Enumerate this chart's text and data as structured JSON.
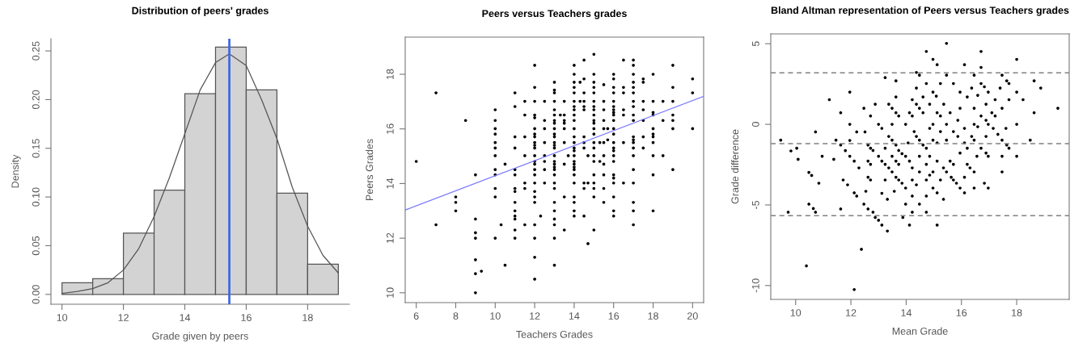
{
  "chart_data": [
    {
      "type": "histogram",
      "title": "Distribution of peers' grades",
      "xlabel": "Grade given by peers",
      "ylabel": "Density",
      "bins": [
        10,
        11,
        12,
        13,
        14,
        15,
        16,
        17,
        18,
        19
      ],
      "values": [
        0.012,
        0.016,
        0.063,
        0.107,
        0.206,
        0.254,
        0.21,
        0.104,
        0.031
      ],
      "color": "#d3d3d3",
      "series": [
        {
          "type": "line",
          "color": "#555555",
          "x": [
            10,
            10.5,
            11,
            11.5,
            12,
            12.5,
            13,
            13.5,
            14,
            14.5,
            15,
            15.45,
            16,
            16.5,
            17,
            17.5,
            18,
            18.5,
            19
          ],
          "values": [
            0.001,
            0.003,
            0.006,
            0.012,
            0.025,
            0.047,
            0.08,
            0.12,
            0.165,
            0.21,
            0.238,
            0.247,
            0.235,
            0.2,
            0.16,
            0.11,
            0.07,
            0.04,
            0.022
          ]
        }
      ],
      "ref_lines": [
        {
          "axis": "x",
          "value": 15.45,
          "color": "#4169e1"
        }
      ],
      "xlim": [
        9.64,
        19.36
      ],
      "ylim": [
        -0.0101,
        0.2625
      ],
      "xticks": [
        10,
        12,
        14,
        16,
        18
      ],
      "yticks": [
        {
          "value": 0,
          "label": "0.00"
        },
        {
          "value": 0.05,
          "label": "0.05"
        },
        {
          "value": 0.1,
          "label": "0.10"
        },
        {
          "value": 0.15,
          "label": "0.15"
        },
        {
          "value": 0.2,
          "label": "0.20"
        },
        {
          "value": 0.25,
          "label": "0.25"
        }
      ]
    },
    {
      "type": "scatter",
      "title": "Peers versus Teachers grades",
      "xlabel": "Teachers Grades",
      "ylabel": "Peers Grades",
      "marker": "circle",
      "series": [
        {
          "color": "#000000",
          "x": [
            6,
            7,
            7,
            8,
            8,
            8,
            8.5,
            9,
            9,
            9,
            9,
            9,
            9,
            9,
            9.3,
            10,
            10,
            10,
            10,
            10,
            10,
            10,
            10,
            10,
            10,
            10,
            10,
            10.3,
            10.5,
            10.5,
            11,
            11,
            11,
            11,
            11,
            11,
            11,
            11,
            11,
            11,
            11,
            11,
            11,
            11,
            11.5,
            11.5,
            11.5,
            11.5,
            11.5,
            11.5,
            11.5,
            12,
            12,
            12,
            12,
            12,
            12,
            12,
            12,
            12,
            12,
            12,
            12,
            12,
            12,
            12,
            12,
            12,
            12,
            12,
            12,
            12,
            12,
            12,
            12,
            12.3,
            12.5,
            12.5,
            12.5,
            12.5,
            12.5,
            12.5,
            12.5,
            12.5,
            13,
            13,
            13,
            13,
            13,
            13,
            13,
            13,
            13,
            13,
            13,
            13,
            13,
            13,
            13,
            13,
            13,
            13,
            13,
            13,
            13,
            13,
            13,
            13,
            13,
            13,
            13,
            13,
            13.3,
            13.5,
            13.5,
            13.5,
            13.5,
            13.5,
            13.5,
            13.5,
            13.5,
            13.5,
            13.7,
            14,
            14,
            14,
            14,
            14,
            14,
            14,
            14,
            14,
            14,
            14,
            14,
            14,
            14,
            14,
            14,
            14,
            14,
            14,
            14,
            14,
            14,
            14,
            14,
            14,
            14,
            14.3,
            14.3,
            14.5,
            14.5,
            14.5,
            14.5,
            14.5,
            14.5,
            14.5,
            14.5,
            14.5,
            14.5,
            14.5,
            14.5,
            14.7,
            14.7,
            14.7,
            15,
            15,
            15,
            15,
            15,
            15,
            15,
            15,
            15,
            15,
            15,
            15,
            15,
            15,
            15,
            15,
            15,
            15,
            15,
            15,
            15,
            15,
            15.3,
            15.3,
            15.5,
            15.5,
            15.5,
            15.5,
            15.5,
            15.5,
            15.5,
            15.5,
            15.5,
            15.5,
            15.5,
            15.7,
            15.7,
            16,
            16,
            16,
            16,
            16,
            16,
            16,
            16,
            16,
            16,
            16,
            16,
            16,
            16,
            16,
            16,
            16,
            16,
            16,
            16,
            16,
            16,
            16,
            16.5,
            16.5,
            16.5,
            16.5,
            16.5,
            16.5,
            16.5,
            17,
            17,
            17,
            17,
            17,
            17,
            17,
            17,
            17,
            17,
            17,
            17,
            17,
            17,
            17,
            17,
            17,
            17,
            17,
            17,
            17.5,
            17.5,
            17.5,
            17.5,
            17.5,
            17.5,
            17.5,
            18,
            18,
            18,
            18,
            18,
            18,
            18,
            18,
            18,
            18,
            18,
            18.5,
            18.5,
            18.5,
            19,
            19,
            19,
            19,
            19,
            19,
            19,
            20,
            20,
            20
          ],
          "values": [
            14.81,
            17.32,
            12.49,
            13.51,
            13.31,
            13.0,
            16.31,
            14.32,
            12.7,
            12.2,
            12.0,
            11.21,
            10.7,
            10.0,
            10.79,
            16.7,
            16.31,
            16.01,
            15.81,
            15.5,
            15.3,
            15.02,
            14.51,
            14.32,
            13.82,
            13.51,
            12.0,
            12.49,
            14.71,
            11.01,
            17.32,
            16.82,
            15.71,
            15.3,
            14.51,
            14.32,
            13.82,
            13.71,
            13.31,
            13.0,
            12.81,
            12.7,
            12.3,
            12.0,
            17.01,
            16.51,
            15.71,
            15.02,
            14.02,
            13.82,
            12.49,
            18.33,
            17.52,
            17.01,
            16.51,
            16.41,
            16.01,
            15.81,
            15.71,
            15.5,
            15.4,
            15.3,
            15.02,
            14.81,
            14.71,
            14.51,
            14.32,
            14.02,
            13.71,
            13.51,
            13.31,
            12.49,
            12.0,
            11.3,
            10.5,
            12.81,
            17.01,
            16.31,
            16.01,
            15.5,
            15.02,
            14.81,
            14.51,
            14.02,
            17.71,
            17.42,
            17.32,
            17.01,
            16.7,
            16.51,
            16.31,
            16.21,
            16.01,
            15.81,
            15.71,
            15.5,
            15.4,
            15.3,
            15.02,
            14.81,
            14.71,
            14.6,
            14.51,
            14.32,
            14.02,
            13.82,
            13.31,
            13.0,
            12.7,
            12.49,
            12.0,
            11.01,
            16.51,
            17.01,
            16.51,
            16.31,
            16.21,
            16.01,
            15.5,
            14.71,
            13.51,
            12.3,
            15.02,
            18.33,
            18.0,
            17.71,
            17.52,
            17.32,
            17.01,
            16.82,
            16.7,
            16.51,
            16.31,
            16.01,
            15.71,
            15.5,
            15.3,
            15.2,
            15.02,
            14.81,
            14.71,
            14.6,
            14.51,
            14.32,
            14.02,
            13.51,
            13.31,
            13.0,
            12.81,
            17.71,
            17.01,
            18.52,
            17.83,
            17.32,
            17.01,
            16.82,
            16.7,
            15.71,
            15.5,
            15.3,
            14.02,
            13.82,
            12.81,
            15.02,
            14.02,
            11.8,
            18.73,
            18.0,
            17.71,
            17.52,
            17.32,
            17.01,
            16.82,
            16.7,
            16.51,
            16.31,
            16.21,
            16.01,
            15.81,
            15.5,
            15.3,
            15.02,
            14.81,
            14.32,
            14.02,
            13.82,
            13.51,
            12.3,
            15.5,
            14.81,
            17.62,
            17.01,
            16.7,
            16.31,
            16.01,
            15.5,
            15.02,
            14.71,
            14.32,
            13.82,
            13.31,
            16.01,
            15.6,
            18.0,
            17.83,
            17.52,
            17.32,
            17.01,
            16.82,
            16.7,
            16.6,
            16.51,
            16.31,
            16.01,
            15.81,
            15.5,
            15.3,
            15.2,
            15.02,
            14.81,
            14.32,
            14.2,
            14.02,
            13.51,
            13.0,
            12.81,
            18.52,
            17.52,
            17.32,
            16.7,
            16.51,
            15.5,
            14.02,
            18.52,
            18.33,
            18.0,
            17.71,
            17.52,
            17.32,
            17.01,
            16.82,
            16.51,
            16.31,
            15.71,
            15.6,
            15.5,
            15.3,
            15.02,
            14.51,
            14.02,
            13.31,
            13.0,
            12.49,
            17.83,
            17.71,
            17.01,
            16.7,
            16.31,
            15.71,
            15.3,
            18.0,
            17.01,
            16.6,
            16.51,
            16.01,
            15.81,
            15.71,
            15.5,
            15.02,
            14.32,
            13.0,
            17.01,
            16.31,
            15.02,
            18.33,
            17.52,
            17.01,
            16.51,
            16.31,
            16.01,
            14.51,
            17.83,
            17.32,
            16.01
          ]
        },
        {
          "type": "line",
          "marker": "none",
          "color": "#7777ff",
          "x": [
            5.44,
            20.56
          ],
          "values": [
            13.03,
            17.19
          ]
        }
      ],
      "xlim": [
        5.44,
        20.56
      ],
      "ylim": [
        9.64,
        19.36
      ],
      "xticks": [
        6,
        8,
        10,
        12,
        14,
        16,
        18,
        20
      ],
      "yticks": [
        10,
        12,
        14,
        16,
        18
      ]
    },
    {
      "type": "scatter",
      "title": "Bland Altman representation of Peers versus Teachers grades",
      "xlabel": "Mean Grade",
      "ylabel": "Grade difference",
      "marker": "circle",
      "series": [
        {
          "color": "#000000",
          "x": [
            9.46,
            9.73,
            9.83,
            10.04,
            10.09,
            10.48,
            10.58,
            10.48,
            10.64,
            10.72,
            10.72,
            10.39,
            10.84,
            10.96,
            11.22,
            11.38,
            11.46,
            11.63,
            11.63,
            11.63,
            11.72,
            11.8,
            11.88,
            11.96,
            11.96,
            11.96,
            11.96,
            12.12,
            12.12,
            12.12,
            12.21,
            12.21,
            12.29,
            12.38,
            12.47,
            12.51,
            12.47,
            12.54,
            12.62,
            12.62,
            12.62,
            12.62,
            12.71,
            12.71,
            12.71,
            12.71,
            12.8,
            12.8,
            12.88,
            12.88,
            13.0,
            13.0,
            13.0,
            13.12,
            13.12,
            13.12,
            13.12,
            13.24,
            13.24,
            13.24,
            13.24,
            13.32,
            13.32,
            13.37,
            13.37,
            13.37,
            13.49,
            13.49,
            13.49,
            13.49,
            13.49,
            13.57,
            13.63,
            13.63,
            13.63,
            13.63,
            13.63,
            13.63,
            13.73,
            13.73,
            13.73,
            13.73,
            13.85,
            13.85,
            13.88,
            13.98,
            13.98,
            13.98,
            13.98,
            14.07,
            14.12,
            14.12,
            14.12,
            14.22,
            14.22,
            14.22,
            14.22,
            14.22,
            14.22,
            14.29,
            14.37,
            14.37,
            14.37,
            14.37,
            14.37,
            14.48,
            14.48,
            14.48,
            14.48,
            14.48,
            14.48,
            14.61,
            14.61,
            14.61,
            14.73,
            14.73,
            14.73,
            14.73,
            14.73,
            14.73,
            14.73,
            14.85,
            14.85,
            14.85,
            14.85,
            14.97,
            14.97,
            14.97,
            14.97,
            14.97,
            14.97,
            15.09,
            15.12,
            15.12,
            15.12,
            15.12,
            15.12,
            15.12,
            15.24,
            15.24,
            15.24,
            15.24,
            15.35,
            15.35,
            15.36,
            15.46,
            15.46,
            15.46,
            15.46,
            15.46,
            15.59,
            15.59,
            15.63,
            15.71,
            15.71,
            15.71,
            15.71,
            15.82,
            15.87,
            15.87,
            15.95,
            15.95,
            15.95,
            15.95,
            16.11,
            16.11,
            16.11,
            16.11,
            16.11,
            16.21,
            16.21,
            16.21,
            16.31,
            16.37,
            16.37,
            16.46,
            16.46,
            16.46,
            16.46,
            16.46,
            16.46,
            16.56,
            16.59,
            16.59,
            16.71,
            16.71,
            16.71,
            16.71,
            16.71,
            16.83,
            16.83,
            16.89,
            16.89,
            16.89,
            16.89,
            16.97,
            16.97,
            16.97,
            16.97,
            17.1,
            17.15,
            17.22,
            17.22,
            17.32,
            17.4,
            17.47,
            17.47,
            17.47,
            17.47,
            17.47,
            17.61,
            17.64,
            17.64,
            17.72,
            17.72,
            17.72,
            18.0,
            18.0,
            18.0,
            18.0,
            18.23,
            18.49,
            18.63,
            18.63,
            18.87,
            19.49
          ],
          "values": [
            -0.98,
            -5.45,
            -1.65,
            -1.48,
            -2.17,
            -2.98,
            -3.17,
            -4.95,
            -5.22,
            -5.45,
            -0.47,
            -8.78,
            -3.65,
            -1.98,
            1.53,
            -2.17,
            -0.98,
            -1.28,
            0.72,
            -5.25,
            -3.45,
            -1.63,
            -3.75,
            2.0,
            0.0,
            -1.0,
            -1.98,
            -2.28,
            -4.25,
            -10.25,
            -0.47,
            -4.45,
            -2.7,
            -7.75,
            1.0,
            -0.47,
            -4.95,
            -4.15,
            -1.28,
            -2.28,
            -3.28,
            -5.25,
            0.52,
            -1.48,
            -2.48,
            -3.45,
            -5.45,
            -1.62,
            1.25,
            -5.78,
            0.0,
            -1.98,
            -5.95,
            -0.25,
            -2.28,
            -4.28,
            -6.25,
            2.9,
            -1.48,
            -2.48,
            -3.45,
            -4.65,
            -6.62,
            1.25,
            -0.75,
            -2.7,
            0.0,
            1.0,
            -0.98,
            -1.98,
            -2.95,
            -4.15,
            2.7,
            1.7,
            0.72,
            -1.28,
            -2.28,
            -3.28,
            0.52,
            -1.62,
            -2.48,
            -3.45,
            -1.82,
            -3.65,
            -5.78,
            0.0,
            -1.98,
            -3.95,
            -4.95,
            -1.15,
            0.72,
            -2.28,
            -6.25,
            -2.7,
            -3.45,
            -4.45,
            -5.45,
            0.52,
            1.53,
            -0.45,
            3.22,
            2.25,
            1.25,
            -3.75,
            -0.75,
            3.05,
            1.0,
            -0.98,
            -1.98,
            -2.95,
            -4.95,
            -1.28,
            1.7,
            0.72,
            4.52,
            2.53,
            -1.48,
            -2.48,
            -3.45,
            -4.45,
            -5.45,
            1.25,
            -0.25,
            -1.98,
            -3.15,
            4.03,
            2.0,
            0.0,
            -0.98,
            -2.95,
            -3.95,
            1.75,
            3.7,
            0.72,
            -1.15,
            -2.28,
            -4.25,
            -6.25,
            2.53,
            0.52,
            -0.45,
            -3.45,
            -2.7,
            -4.65,
            1.25,
            5.02,
            3.05,
            0.0,
            -0.98,
            -2.95,
            0.72,
            -2.28,
            -3.28,
            2.53,
            -0.45,
            -2.48,
            -3.45,
            -3.65,
            0.25,
            -0.75,
            -1.78,
            1.0,
            -3.95,
            2.0,
            3.7,
            -1.15,
            -3.28,
            -4.25,
            -0.25,
            -1.48,
            -2.48,
            1.7,
            -2.7,
            2.25,
            -0.75,
            -3.95,
            -2.95,
            3.05,
            1.0,
            0.0,
            -0.98,
            -1.98,
            1.8,
            -0.15,
            4.52,
            3.53,
            2.53,
            0.52,
            -1.48,
            -3.65,
            2.33,
            1.25,
            0.25,
            -0.75,
            -1.78,
            -3.95,
            2.0,
            0.0,
            -1.98,
            0.72,
            -0.25,
            0.52,
            1.53,
            -0.62,
            2.25,
            3.05,
            1.0,
            -0.98,
            -1.98,
            -2.95,
            -0.25,
            2.7,
            -1.28,
            2.53,
            1.53,
            -1.48,
            4.03,
            2.0,
            0.0,
            -1.98,
            1.53,
            -0.98,
            2.7,
            0.72,
            2.25,
            1.0
          ]
        }
      ],
      "ref_lines": [
        {
          "axis": "y",
          "value": 3.2,
          "color": "#808080",
          "line_style": "dashed"
        },
        {
          "axis": "y",
          "value": -1.2,
          "color": "#808080",
          "line_style": "dashed"
        },
        {
          "axis": "y",
          "value": -5.67,
          "color": "#808080",
          "line_style": "dashed"
        }
      ],
      "xlim": [
        9.1,
        19.9
      ],
      "ylim": [
        -10.86,
        5.61
      ],
      "xticks": [
        10,
        12,
        14,
        16,
        18
      ],
      "yticks": [
        -10,
        -5,
        0,
        5
      ]
    }
  ]
}
